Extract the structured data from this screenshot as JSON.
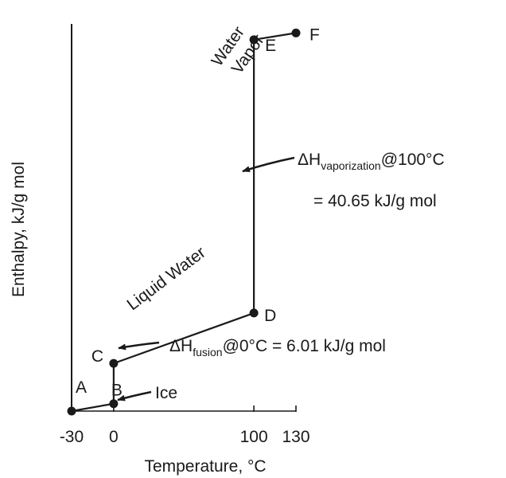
{
  "chart_data": {
    "type": "line",
    "xlabel": "Temperature, °C",
    "ylabel": "Enthalpy, kJ/g mol",
    "x_ticks": [
      "-30",
      "0",
      "100",
      "130"
    ],
    "xlim": [
      -30,
      130
    ],
    "points": [
      {
        "label": "A",
        "x": -30,
        "y": 0
      },
      {
        "label": "B",
        "x": 0,
        "y": 1.1
      },
      {
        "label": "C",
        "x": 0,
        "y": 7.1
      },
      {
        "label": "D",
        "x": 100,
        "y": 14.6
      },
      {
        "label": "E",
        "x": 100,
        "y": 55.3
      },
      {
        "label": "F",
        "x": 130,
        "y": 56.3
      }
    ],
    "y_unit_note": "Enthalpy values are relative (no y-axis tick labels shown); y estimated from the drawn geometry.",
    "phase_labels": {
      "water_vapor_line1": "Water",
      "water_vapor_line2": "Vapor",
      "liquid_water": "Liquid Water",
      "ice": "Ice"
    },
    "annotations": {
      "vaporization": {
        "prefix": "ΔH",
        "subscript": "vaporization",
        "suffix": "@100°C",
        "value_line": "= 40.65 kJ/g mol"
      },
      "fusion": {
        "prefix": "ΔH",
        "subscript": "fusion",
        "suffix": "@0°C = 6.01 kJ/g mol"
      }
    }
  }
}
